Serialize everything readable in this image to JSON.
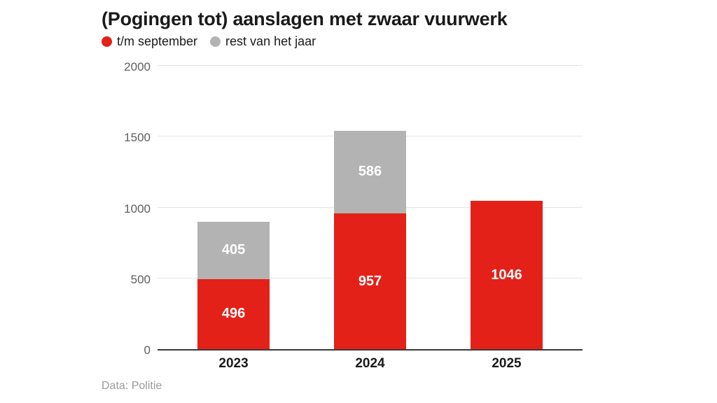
{
  "title": "(Pogingen tot) aanslagen met zwaar vuurwerk",
  "legend": [
    {
      "label": "t/m september",
      "color": "#e32119"
    },
    {
      "label": "rest van het jaar",
      "color": "#b3b3b3"
    }
  ],
  "footer": {
    "source": "Data: Politie"
  },
  "colors": {
    "red": "#e32119",
    "gray": "#b3b3b3",
    "grid": "#e4e4e4",
    "axis": "#3a3a3a",
    "tick_label": "#5f5f5f",
    "value_label": "#ffffff",
    "title_text": "#1a1a1a",
    "footer_text": "#9a9a9a"
  },
  "chart_data": {
    "type": "bar",
    "stacked": true,
    "categories": [
      "2023",
      "2024",
      "2025"
    ],
    "series": [
      {
        "name": "t/m september",
        "color_key": "red",
        "values": [
          496,
          957,
          1046
        ]
      },
      {
        "name": "rest van het jaar",
        "color_key": "gray",
        "values": [
          405,
          586,
          null
        ]
      }
    ],
    "totals": [
      901,
      1543,
      1046
    ],
    "title": "(Pogingen tot) aanslagen met zwaar vuurwerk",
    "xlabel": "",
    "ylabel": "",
    "ylim": [
      0,
      2000
    ],
    "yticks": [
      0,
      500,
      1000,
      1500,
      2000
    ],
    "grid": true,
    "legend_position": "top-left",
    "source": "Data: Politie"
  }
}
